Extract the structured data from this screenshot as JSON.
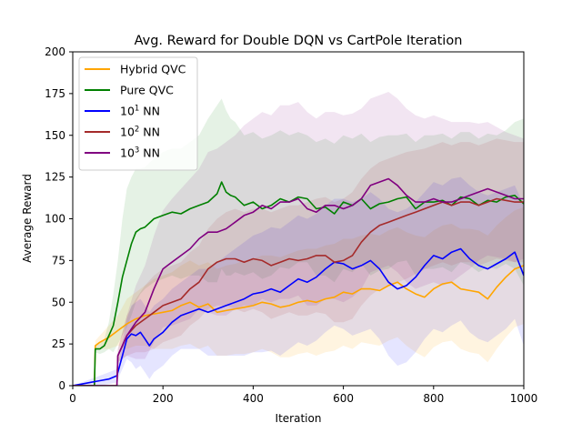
{
  "chart_data": {
    "type": "line",
    "title": "Avg. Reward for Double DQN vs CartPole Iteration",
    "xlabel": "Iteration",
    "ylabel": "Average Reward",
    "xlim": [
      0,
      1000
    ],
    "ylim": [
      0,
      200
    ],
    "xticks": [
      0,
      200,
      400,
      600,
      800,
      1000
    ],
    "yticks": [
      0,
      25,
      50,
      75,
      100,
      125,
      150,
      175,
      200
    ],
    "grid": false,
    "legend_position": "top-left",
    "series": [
      {
        "name": "Hybrid QVC",
        "legend_base": "Hybrid QVC",
        "legend_sup": "",
        "color": "#ffa500",
        "band_opacity": 0.12,
        "x": [
          0,
          48,
          50,
          60,
          80,
          100,
          120,
          140,
          160,
          180,
          200,
          220,
          240,
          260,
          280,
          300,
          320,
          340,
          360,
          380,
          400,
          420,
          440,
          460,
          480,
          500,
          520,
          540,
          560,
          580,
          600,
          620,
          640,
          660,
          680,
          700,
          720,
          740,
          760,
          780,
          800,
          820,
          840,
          860,
          880,
          900,
          920,
          940,
          960,
          980,
          1000
        ],
        "values": [
          0,
          0,
          24,
          26,
          29,
          33,
          37,
          40,
          42,
          43,
          44,
          45,
          48,
          50,
          47,
          49,
          44,
          45,
          46,
          47,
          48,
          50,
          49,
          47,
          48,
          50,
          51,
          50,
          52,
          53,
          56,
          55,
          58,
          58,
          57,
          60,
          62,
          58,
          55,
          53,
          58,
          61,
          62,
          58,
          57,
          56,
          52,
          59,
          65,
          70,
          72
        ],
        "upper": [
          0,
          0,
          27,
          30,
          36,
          42,
          52,
          56,
          60,
          64,
          66,
          68,
          72,
          75,
          72,
          74,
          70,
          72,
          73,
          75,
          76,
          78,
          78,
          77,
          79,
          81,
          82,
          82,
          84,
          85,
          88,
          88,
          90,
          91,
          90,
          93,
          95,
          92,
          90,
          89,
          93,
          96,
          97,
          94,
          94,
          93,
          90,
          96,
          101,
          105,
          107
        ],
        "lower": [
          0,
          0,
          21,
          22,
          22,
          24,
          22,
          24,
          24,
          22,
          22,
          22,
          24,
          25,
          22,
          24,
          18,
          18,
          19,
          19,
          20,
          22,
          20,
          17,
          17,
          19,
          20,
          18,
          20,
          21,
          24,
          22,
          26,
          25,
          24,
          27,
          29,
          24,
          20,
          17,
          23,
          26,
          27,
          22,
          20,
          19,
          14,
          22,
          29,
          35,
          37
        ]
      },
      {
        "name": "Pure QVC",
        "legend_base": "Pure QVC",
        "legend_sup": "",
        "color": "#008000",
        "band_opacity": 0.1,
        "x": [
          0,
          48,
          50,
          60,
          70,
          80,
          90,
          100,
          110,
          120,
          130,
          140,
          150,
          160,
          180,
          200,
          220,
          240,
          260,
          280,
          300,
          320,
          330,
          340,
          350,
          360,
          380,
          400,
          420,
          440,
          460,
          480,
          500,
          520,
          540,
          560,
          580,
          600,
          620,
          640,
          660,
          680,
          700,
          720,
          740,
          760,
          780,
          800,
          820,
          840,
          860,
          880,
          900,
          920,
          940,
          960,
          980,
          1000
        ],
        "values": [
          0,
          0,
          22,
          22,
          24,
          30,
          36,
          50,
          65,
          75,
          85,
          92,
          94,
          95,
          100,
          102,
          104,
          103,
          106,
          108,
          110,
          115,
          122,
          116,
          114,
          113,
          108,
          110,
          106,
          108,
          112,
          110,
          113,
          112,
          106,
          107,
          103,
          110,
          108,
          112,
          106,
          109,
          110,
          112,
          113,
          106,
          110,
          110,
          111,
          108,
          113,
          112,
          108,
          111,
          110,
          113,
          114,
          109
        ],
        "upper": [
          0,
          0,
          24,
          25,
          28,
          38,
          55,
          75,
          100,
          118,
          125,
          130,
          130,
          131,
          136,
          140,
          142,
          142,
          146,
          150,
          160,
          168,
          172,
          165,
          160,
          158,
          150,
          152,
          148,
          150,
          153,
          150,
          152,
          150,
          146,
          148,
          145,
          150,
          148,
          151,
          146,
          149,
          150,
          150,
          151,
          146,
          150,
          150,
          151,
          148,
          152,
          152,
          148,
          151,
          150,
          153,
          158,
          160
        ],
        "lower": [
          0,
          0,
          20,
          19,
          20,
          22,
          20,
          25,
          30,
          35,
          42,
          50,
          55,
          58,
          62,
          64,
          66,
          64,
          66,
          66,
          62,
          62,
          70,
          66,
          66,
          68,
          66,
          68,
          64,
          66,
          71,
          70,
          74,
          74,
          66,
          66,
          62,
          70,
          68,
          73,
          66,
          69,
          70,
          74,
          75,
          66,
          70,
          70,
          71,
          68,
          74,
          72,
          68,
          71,
          70,
          73,
          70,
          60
        ]
      },
      {
        "name": "10^1 NN",
        "legend_base": "10",
        "legend_sup": "1",
        "legend_rest": " NN",
        "color": "#0000ff",
        "band_opacity": 0.1,
        "x": [
          0,
          20,
          40,
          60,
          80,
          98,
          100,
          110,
          120,
          130,
          140,
          150,
          160,
          170,
          180,
          200,
          220,
          240,
          260,
          280,
          300,
          320,
          340,
          360,
          380,
          400,
          420,
          440,
          460,
          480,
          500,
          520,
          540,
          560,
          580,
          600,
          620,
          640,
          660,
          680,
          700,
          720,
          740,
          760,
          780,
          800,
          820,
          840,
          860,
          880,
          900,
          920,
          940,
          960,
          980,
          1000
        ],
        "values": [
          0,
          1,
          2,
          3,
          4,
          6,
          8,
          18,
          28,
          31,
          30,
          32,
          28,
          24,
          28,
          32,
          38,
          42,
          44,
          46,
          44,
          46,
          48,
          50,
          52,
          55,
          56,
          58,
          56,
          60,
          64,
          62,
          65,
          70,
          74,
          73,
          70,
          72,
          75,
          70,
          62,
          58,
          60,
          65,
          72,
          78,
          76,
          80,
          82,
          76,
          72,
          70,
          73,
          76,
          80,
          66
        ],
        "upper": [
          0,
          2,
          4,
          6,
          8,
          10,
          12,
          26,
          40,
          48,
          50,
          52,
          48,
          44,
          48,
          52,
          58,
          62,
          66,
          70,
          70,
          74,
          78,
          82,
          86,
          90,
          92,
          95,
          94,
          98,
          102,
          100,
          103,
          108,
          112,
          112,
          110,
          112,
          116,
          112,
          106,
          104,
          106,
          110,
          116,
          122,
          120,
          124,
          125,
          120,
          116,
          114,
          116,
          118,
          120,
          108
        ],
        "lower": [
          0,
          0,
          0,
          0,
          1,
          2,
          4,
          10,
          16,
          14,
          10,
          12,
          8,
          4,
          8,
          12,
          18,
          22,
          22,
          22,
          18,
          18,
          18,
          18,
          18,
          20,
          20,
          21,
          18,
          22,
          26,
          24,
          27,
          32,
          36,
          34,
          30,
          32,
          34,
          28,
          18,
          12,
          14,
          20,
          28,
          34,
          32,
          36,
          39,
          32,
          28,
          26,
          30,
          34,
          40,
          24
        ]
      },
      {
        "name": "10^2 NN",
        "legend_base": "10",
        "legend_sup": "2",
        "legend_rest": " NN",
        "color": "#a52a2a",
        "band_opacity": 0.1,
        "x": [
          0,
          98,
          100,
          110,
          120,
          140,
          160,
          180,
          200,
          220,
          240,
          260,
          280,
          300,
          320,
          340,
          360,
          380,
          400,
          420,
          440,
          460,
          480,
          500,
          520,
          540,
          560,
          580,
          600,
          620,
          640,
          660,
          680,
          700,
          720,
          740,
          760,
          780,
          800,
          820,
          840,
          860,
          880,
          900,
          920,
          940,
          960,
          980,
          1000
        ],
        "values": [
          0,
          0,
          18,
          24,
          30,
          36,
          40,
          44,
          48,
          50,
          52,
          58,
          62,
          70,
          74,
          76,
          76,
          74,
          76,
          75,
          72,
          74,
          76,
          75,
          76,
          78,
          78,
          74,
          75,
          78,
          86,
          92,
          96,
          98,
          100,
          102,
          104,
          106,
          108,
          110,
          108,
          110,
          110,
          108,
          110,
          112,
          111,
          110,
          110
        ],
        "upper": [
          0,
          0,
          22,
          32,
          42,
          52,
          60,
          66,
          70,
          72,
          74,
          80,
          84,
          94,
          100,
          104,
          106,
          104,
          106,
          106,
          104,
          106,
          108,
          108,
          110,
          112,
          113,
          110,
          112,
          116,
          124,
          130,
          134,
          136,
          138,
          140,
          141,
          142,
          144,
          146,
          144,
          146,
          146,
          144,
          146,
          148,
          147,
          146,
          146
        ],
        "lower": [
          0,
          0,
          14,
          16,
          18,
          20,
          20,
          22,
          26,
          28,
          30,
          36,
          40,
          46,
          48,
          48,
          46,
          44,
          46,
          44,
          40,
          42,
          44,
          42,
          42,
          44,
          43,
          38,
          38,
          40,
          48,
          54,
          58,
          60,
          62,
          64,
          67,
          70,
          72,
          74,
          72,
          74,
          74,
          72,
          74,
          76,
          75,
          74,
          74
        ]
      },
      {
        "name": "10^3 NN",
        "legend_base": "10",
        "legend_sup": "3",
        "legend_rest": " NN",
        "color": "#800080",
        "band_opacity": 0.1,
        "x": [
          0,
          98,
          100,
          110,
          120,
          140,
          160,
          180,
          200,
          220,
          240,
          260,
          280,
          300,
          320,
          340,
          360,
          380,
          400,
          420,
          440,
          460,
          480,
          500,
          520,
          540,
          560,
          580,
          600,
          620,
          640,
          660,
          680,
          700,
          720,
          740,
          760,
          780,
          800,
          820,
          840,
          860,
          880,
          900,
          920,
          940,
          960,
          980,
          1000
        ],
        "values": [
          0,
          0,
          18,
          24,
          30,
          38,
          44,
          58,
          70,
          74,
          78,
          82,
          88,
          92,
          92,
          94,
          98,
          102,
          104,
          108,
          106,
          110,
          110,
          112,
          106,
          104,
          108,
          108,
          106,
          108,
          112,
          120,
          122,
          124,
          120,
          114,
          110,
          110,
          112,
          110,
          110,
          112,
          114,
          116,
          118,
          116,
          114,
          112,
          112
        ],
        "upper": [
          0,
          0,
          22,
          32,
          42,
          60,
          72,
          90,
          105,
          112,
          118,
          124,
          130,
          140,
          142,
          146,
          150,
          156,
          160,
          164,
          162,
          168,
          168,
          170,
          164,
          160,
          164,
          164,
          162,
          163,
          166,
          172,
          174,
          176,
          172,
          166,
          162,
          160,
          162,
          160,
          158,
          158,
          158,
          157,
          158,
          155,
          152,
          150,
          148
        ],
        "lower": [
          0,
          0,
          14,
          16,
          18,
          16,
          16,
          26,
          35,
          36,
          38,
          40,
          46,
          44,
          42,
          42,
          46,
          48,
          48,
          52,
          50,
          52,
          52,
          54,
          48,
          48,
          52,
          52,
          50,
          53,
          58,
          68,
          70,
          72,
          68,
          62,
          58,
          60,
          62,
          60,
          62,
          66,
          70,
          75,
          78,
          77,
          76,
          74,
          76
        ]
      }
    ]
  }
}
